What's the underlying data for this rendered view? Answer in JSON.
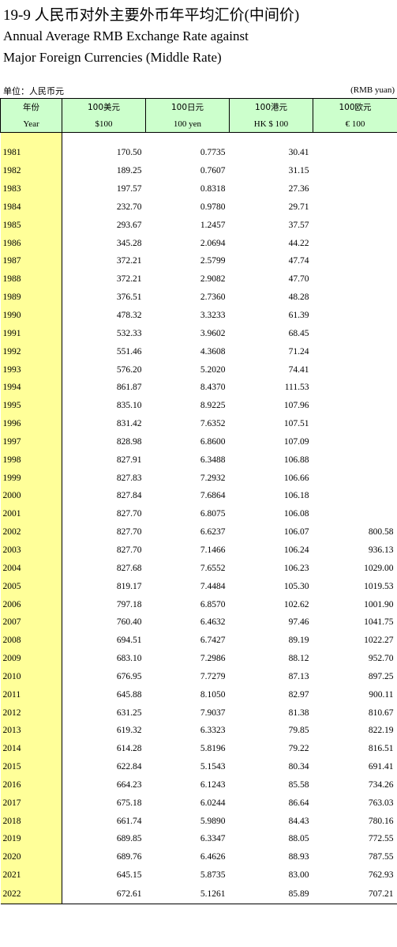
{
  "title": {
    "cn": "19-9  人民币对外主要外币年平均汇价(中间价)",
    "en_line1": "Annual Average RMB Exchange Rate against",
    "en_line2": "Major Foreign Currencies (Middle Rate)"
  },
  "unit": {
    "cn": "单位：人民币元",
    "en": "(RMB yuan)"
  },
  "headers": [
    {
      "cn": "年份",
      "en": "Year"
    },
    {
      "cn": "100美元",
      "en": "$100"
    },
    {
      "cn": "100日元",
      "en": "100 yen"
    },
    {
      "cn": "100港元",
      "en": "HK $ 100"
    },
    {
      "cn": "100欧元",
      "en": "€ 100"
    }
  ],
  "rows": [
    [
      "1981",
      "170.50",
      "0.7735",
      "30.41",
      ""
    ],
    [
      "1982",
      "189.25",
      "0.7607",
      "31.15",
      ""
    ],
    [
      "1983",
      "197.57",
      "0.8318",
      "27.36",
      ""
    ],
    [
      "1984",
      "232.70",
      "0.9780",
      "29.71",
      ""
    ],
    [
      "1985",
      "293.67",
      "1.2457",
      "37.57",
      ""
    ],
    [
      "1986",
      "345.28",
      "2.0694",
      "44.22",
      ""
    ],
    [
      "1987",
      "372.21",
      "2.5799",
      "47.74",
      ""
    ],
    [
      "1988",
      "372.21",
      "2.9082",
      "47.70",
      ""
    ],
    [
      "1989",
      "376.51",
      "2.7360",
      "48.28",
      ""
    ],
    [
      "1990",
      "478.32",
      "3.3233",
      "61.39",
      ""
    ],
    [
      "1991",
      "532.33",
      "3.9602",
      "68.45",
      ""
    ],
    [
      "1992",
      "551.46",
      "4.3608",
      "71.24",
      ""
    ],
    [
      "1993",
      "576.20",
      "5.2020",
      "74.41",
      ""
    ],
    [
      "1994",
      "861.87",
      "8.4370",
      "111.53",
      ""
    ],
    [
      "1995",
      "835.10",
      "8.9225",
      "107.96",
      ""
    ],
    [
      "1996",
      "831.42",
      "7.6352",
      "107.51",
      ""
    ],
    [
      "1997",
      "828.98",
      "6.8600",
      "107.09",
      ""
    ],
    [
      "1998",
      "827.91",
      "6.3488",
      "106.88",
      ""
    ],
    [
      "1999",
      "827.83",
      "7.2932",
      "106.66",
      ""
    ],
    [
      "2000",
      "827.84",
      "7.6864",
      "106.18",
      ""
    ],
    [
      "2001",
      "827.70",
      "6.8075",
      "106.08",
      ""
    ],
    [
      "2002",
      "827.70",
      "6.6237",
      "106.07",
      "800.58"
    ],
    [
      "2003",
      "827.70",
      "7.1466",
      "106.24",
      "936.13"
    ],
    [
      "2004",
      "827.68",
      "7.6552",
      "106.23",
      "1029.00"
    ],
    [
      "2005",
      "819.17",
      "7.4484",
      "105.30",
      "1019.53"
    ],
    [
      "2006",
      "797.18",
      "6.8570",
      "102.62",
      "1001.90"
    ],
    [
      "2007",
      "760.40",
      "6.4632",
      "97.46",
      "1041.75"
    ],
    [
      "2008",
      "694.51",
      "6.7427",
      "89.19",
      "1022.27"
    ],
    [
      "2009",
      "683.10",
      "7.2986",
      "88.12",
      "952.70"
    ],
    [
      "2010",
      "676.95",
      "7.7279",
      "87.13",
      "897.25"
    ],
    [
      "2011",
      "645.88",
      "8.1050",
      "82.97",
      "900.11"
    ],
    [
      "2012",
      "631.25",
      "7.9037",
      "81.38",
      "810.67"
    ],
    [
      "2013",
      "619.32",
      "6.3323",
      "79.85",
      "822.19"
    ],
    [
      "2014",
      "614.28",
      "5.8196",
      "79.22",
      "816.51"
    ],
    [
      "2015",
      "622.84",
      "5.1543",
      "80.34",
      "691.41"
    ],
    [
      "2016",
      "664.23",
      "6.1243",
      "85.58",
      "734.26"
    ],
    [
      "2017",
      "675.18",
      "6.0244",
      "86.64",
      "763.03"
    ],
    [
      "2018",
      "661.74",
      "5.9890",
      "84.43",
      "780.16"
    ],
    [
      "2019",
      "689.85",
      "6.3347",
      "88.05",
      "772.55"
    ],
    [
      "2020",
      "689.76",
      "6.4626",
      "88.93",
      "787.55"
    ],
    [
      "2021",
      "645.15",
      "5.8735",
      "83.00",
      "762.93"
    ],
    [
      "2022",
      "672.61",
      "5.1261",
      "85.89",
      "707.21"
    ]
  ]
}
